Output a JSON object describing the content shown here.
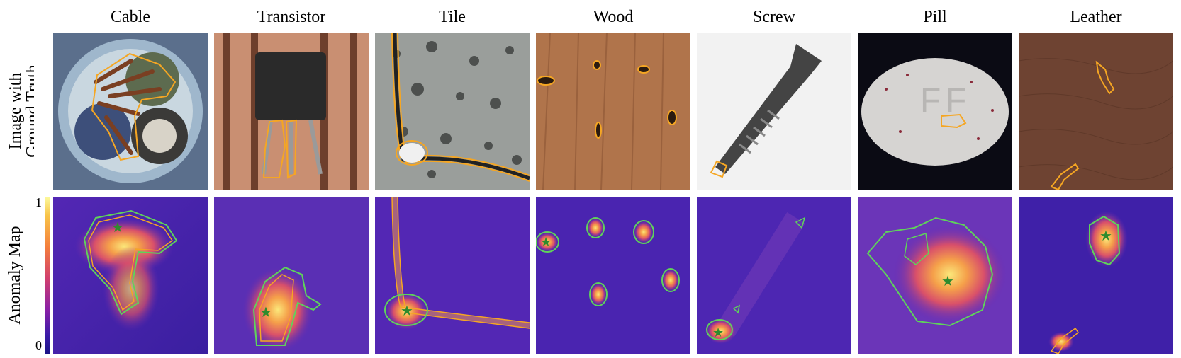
{
  "columns": [
    "Cable",
    "Transistor",
    "Tile",
    "Wood",
    "Screw",
    "Pill",
    "Leather"
  ],
  "row_labels": {
    "top_line1": "Image with",
    "top_line2": "Ground Truth",
    "bottom": "Anomaly Map"
  },
  "colorbar": {
    "max": "1",
    "min": "0"
  },
  "colors": {
    "ground_truth_contour": "#f5a623",
    "prediction_contour": "#5fd35a",
    "peak_marker": "#2e8b2e",
    "map_low": "#3a1fa0",
    "map_high": "#fbe77a"
  },
  "icons": {
    "peak_marker": "star-icon"
  }
}
